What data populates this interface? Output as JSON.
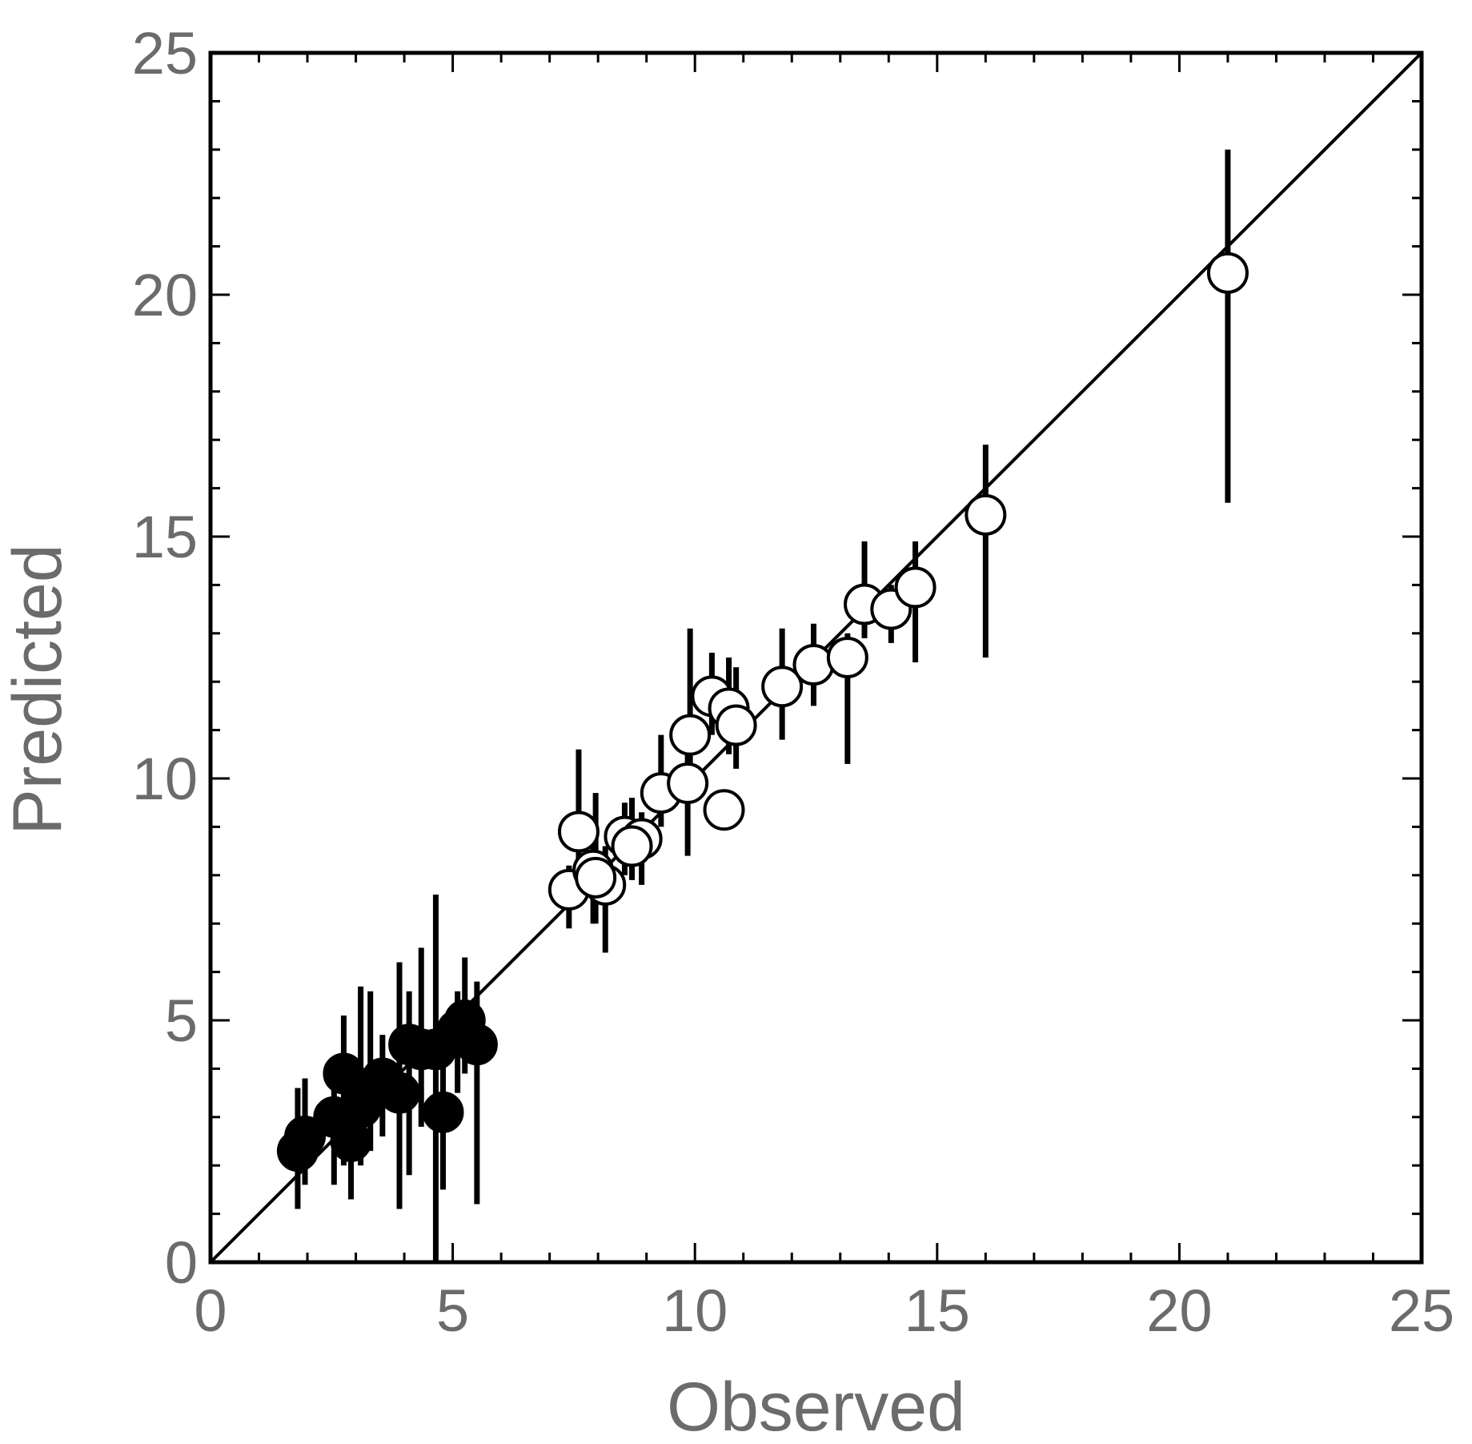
{
  "chart_data": {
    "type": "scatter",
    "title": "",
    "xlabel": "Observed",
    "ylabel": "Predicted",
    "xlim": [
      0,
      25
    ],
    "ylim": [
      0,
      25
    ],
    "x_ticks": [
      "0",
      "5",
      "10",
      "15",
      "20",
      "25"
    ],
    "y_ticks": [
      "0",
      "5",
      "10",
      "15",
      "20",
      "25"
    ],
    "grid": false,
    "reference_line": {
      "type": "identity",
      "x": [
        0,
        25
      ],
      "y": [
        0,
        25
      ]
    },
    "colors": {
      "filled_marker": "#000000",
      "open_marker": "#ffffff",
      "text": "#6b6b6b"
    },
    "series": [
      {
        "marker": "filled",
        "points": [
          {
            "x": 1.8,
            "y": 2.3,
            "ylow": 1.1,
            "yhigh": 3.6
          },
          {
            "x": 1.95,
            "y": 2.6,
            "ylow": 1.6,
            "yhigh": 3.8
          },
          {
            "x": 2.55,
            "y": 3.0,
            "ylow": 1.6,
            "yhigh": 4.2
          },
          {
            "x": 2.75,
            "y": 3.9,
            "ylow": 2.0,
            "yhigh": 5.1
          },
          {
            "x": 2.9,
            "y": 2.5,
            "ylow": 1.3,
            "yhigh": 3.8
          },
          {
            "x": 3.1,
            "y": 3.2,
            "ylow": 2.0,
            "yhigh": 5.7
          },
          {
            "x": 3.3,
            "y": 3.5,
            "ylow": 2.3,
            "yhigh": 5.6
          },
          {
            "x": 3.55,
            "y": 3.8,
            "ylow": 2.6,
            "yhigh": 4.7
          },
          {
            "x": 3.9,
            "y": 3.5,
            "ylow": 1.1,
            "yhigh": 6.2
          },
          {
            "x": 4.1,
            "y": 4.5,
            "ylow": 1.8,
            "yhigh": 5.6
          },
          {
            "x": 4.35,
            "y": 4.4,
            "ylow": 2.8,
            "yhigh": 6.5
          },
          {
            "x": 4.65,
            "y": 4.4,
            "ylow": 0.0,
            "yhigh": 7.6
          },
          {
            "x": 4.8,
            "y": 3.1,
            "ylow": 1.5,
            "yhigh": 4.2
          },
          {
            "x": 5.1,
            "y": 4.8,
            "ylow": 3.5,
            "yhigh": 5.6
          },
          {
            "x": 5.25,
            "y": 5.0,
            "ylow": 3.9,
            "yhigh": 6.3
          },
          {
            "x": 5.5,
            "y": 4.5,
            "ylow": 1.2,
            "yhigh": 5.8
          }
        ]
      },
      {
        "marker": "open",
        "points": [
          {
            "x": 7.4,
            "y": 7.7,
            "ylow": 6.9,
            "yhigh": 8.2
          },
          {
            "x": 7.6,
            "y": 8.9,
            "ylow": 7.4,
            "yhigh": 10.6
          },
          {
            "x": 7.9,
            "y": 8.1,
            "ylow": 7.0,
            "yhigh": 8.8
          },
          {
            "x": 8.15,
            "y": 7.8,
            "ylow": 6.4,
            "yhigh": 8.6
          },
          {
            "x": 7.95,
            "y": 7.95,
            "ylow": 7.0,
            "yhigh": 9.7
          },
          {
            "x": 8.55,
            "y": 8.8,
            "ylow": 8.0,
            "yhigh": 9.5
          },
          {
            "x": 8.9,
            "y": 8.75,
            "ylow": 7.8,
            "yhigh": 9.3
          },
          {
            "x": 8.7,
            "y": 8.6,
            "ylow": 7.9,
            "yhigh": 9.6
          },
          {
            "x": 9.3,
            "y": 9.7,
            "ylow": 9.0,
            "yhigh": 10.9
          },
          {
            "x": 9.85,
            "y": 9.9,
            "ylow": 8.4,
            "yhigh": 10.5
          },
          {
            "x": 9.9,
            "y": 10.9,
            "ylow": 9.8,
            "yhigh": 13.1
          },
          {
            "x": 10.35,
            "y": 11.7,
            "ylow": 10.9,
            "yhigh": 12.6
          },
          {
            "x": 10.7,
            "y": 11.45,
            "ylow": 10.5,
            "yhigh": 12.5
          },
          {
            "x": 10.85,
            "y": 11.1,
            "ylow": 10.2,
            "yhigh": 12.3
          },
          {
            "x": 10.6,
            "y": 9.35,
            "ylow": 9.1,
            "yhigh": 9.6
          },
          {
            "x": 11.8,
            "y": 11.9,
            "ylow": 10.8,
            "yhigh": 13.1
          },
          {
            "x": 12.45,
            "y": 12.35,
            "ylow": 11.5,
            "yhigh": 13.2
          },
          {
            "x": 13.15,
            "y": 12.5,
            "ylow": 10.3,
            "yhigh": 13.0
          },
          {
            "x": 13.5,
            "y": 13.6,
            "ylow": 12.9,
            "yhigh": 14.9
          },
          {
            "x": 14.05,
            "y": 13.5,
            "ylow": 12.8,
            "yhigh": 14.0
          },
          {
            "x": 14.55,
            "y": 13.95,
            "ylow": 12.4,
            "yhigh": 14.9
          },
          {
            "x": 16.0,
            "y": 15.45,
            "ylow": 12.5,
            "yhigh": 16.9
          },
          {
            "x": 21.0,
            "y": 20.45,
            "ylow": 15.7,
            "yhigh": 23.0
          }
        ]
      }
    ]
  }
}
